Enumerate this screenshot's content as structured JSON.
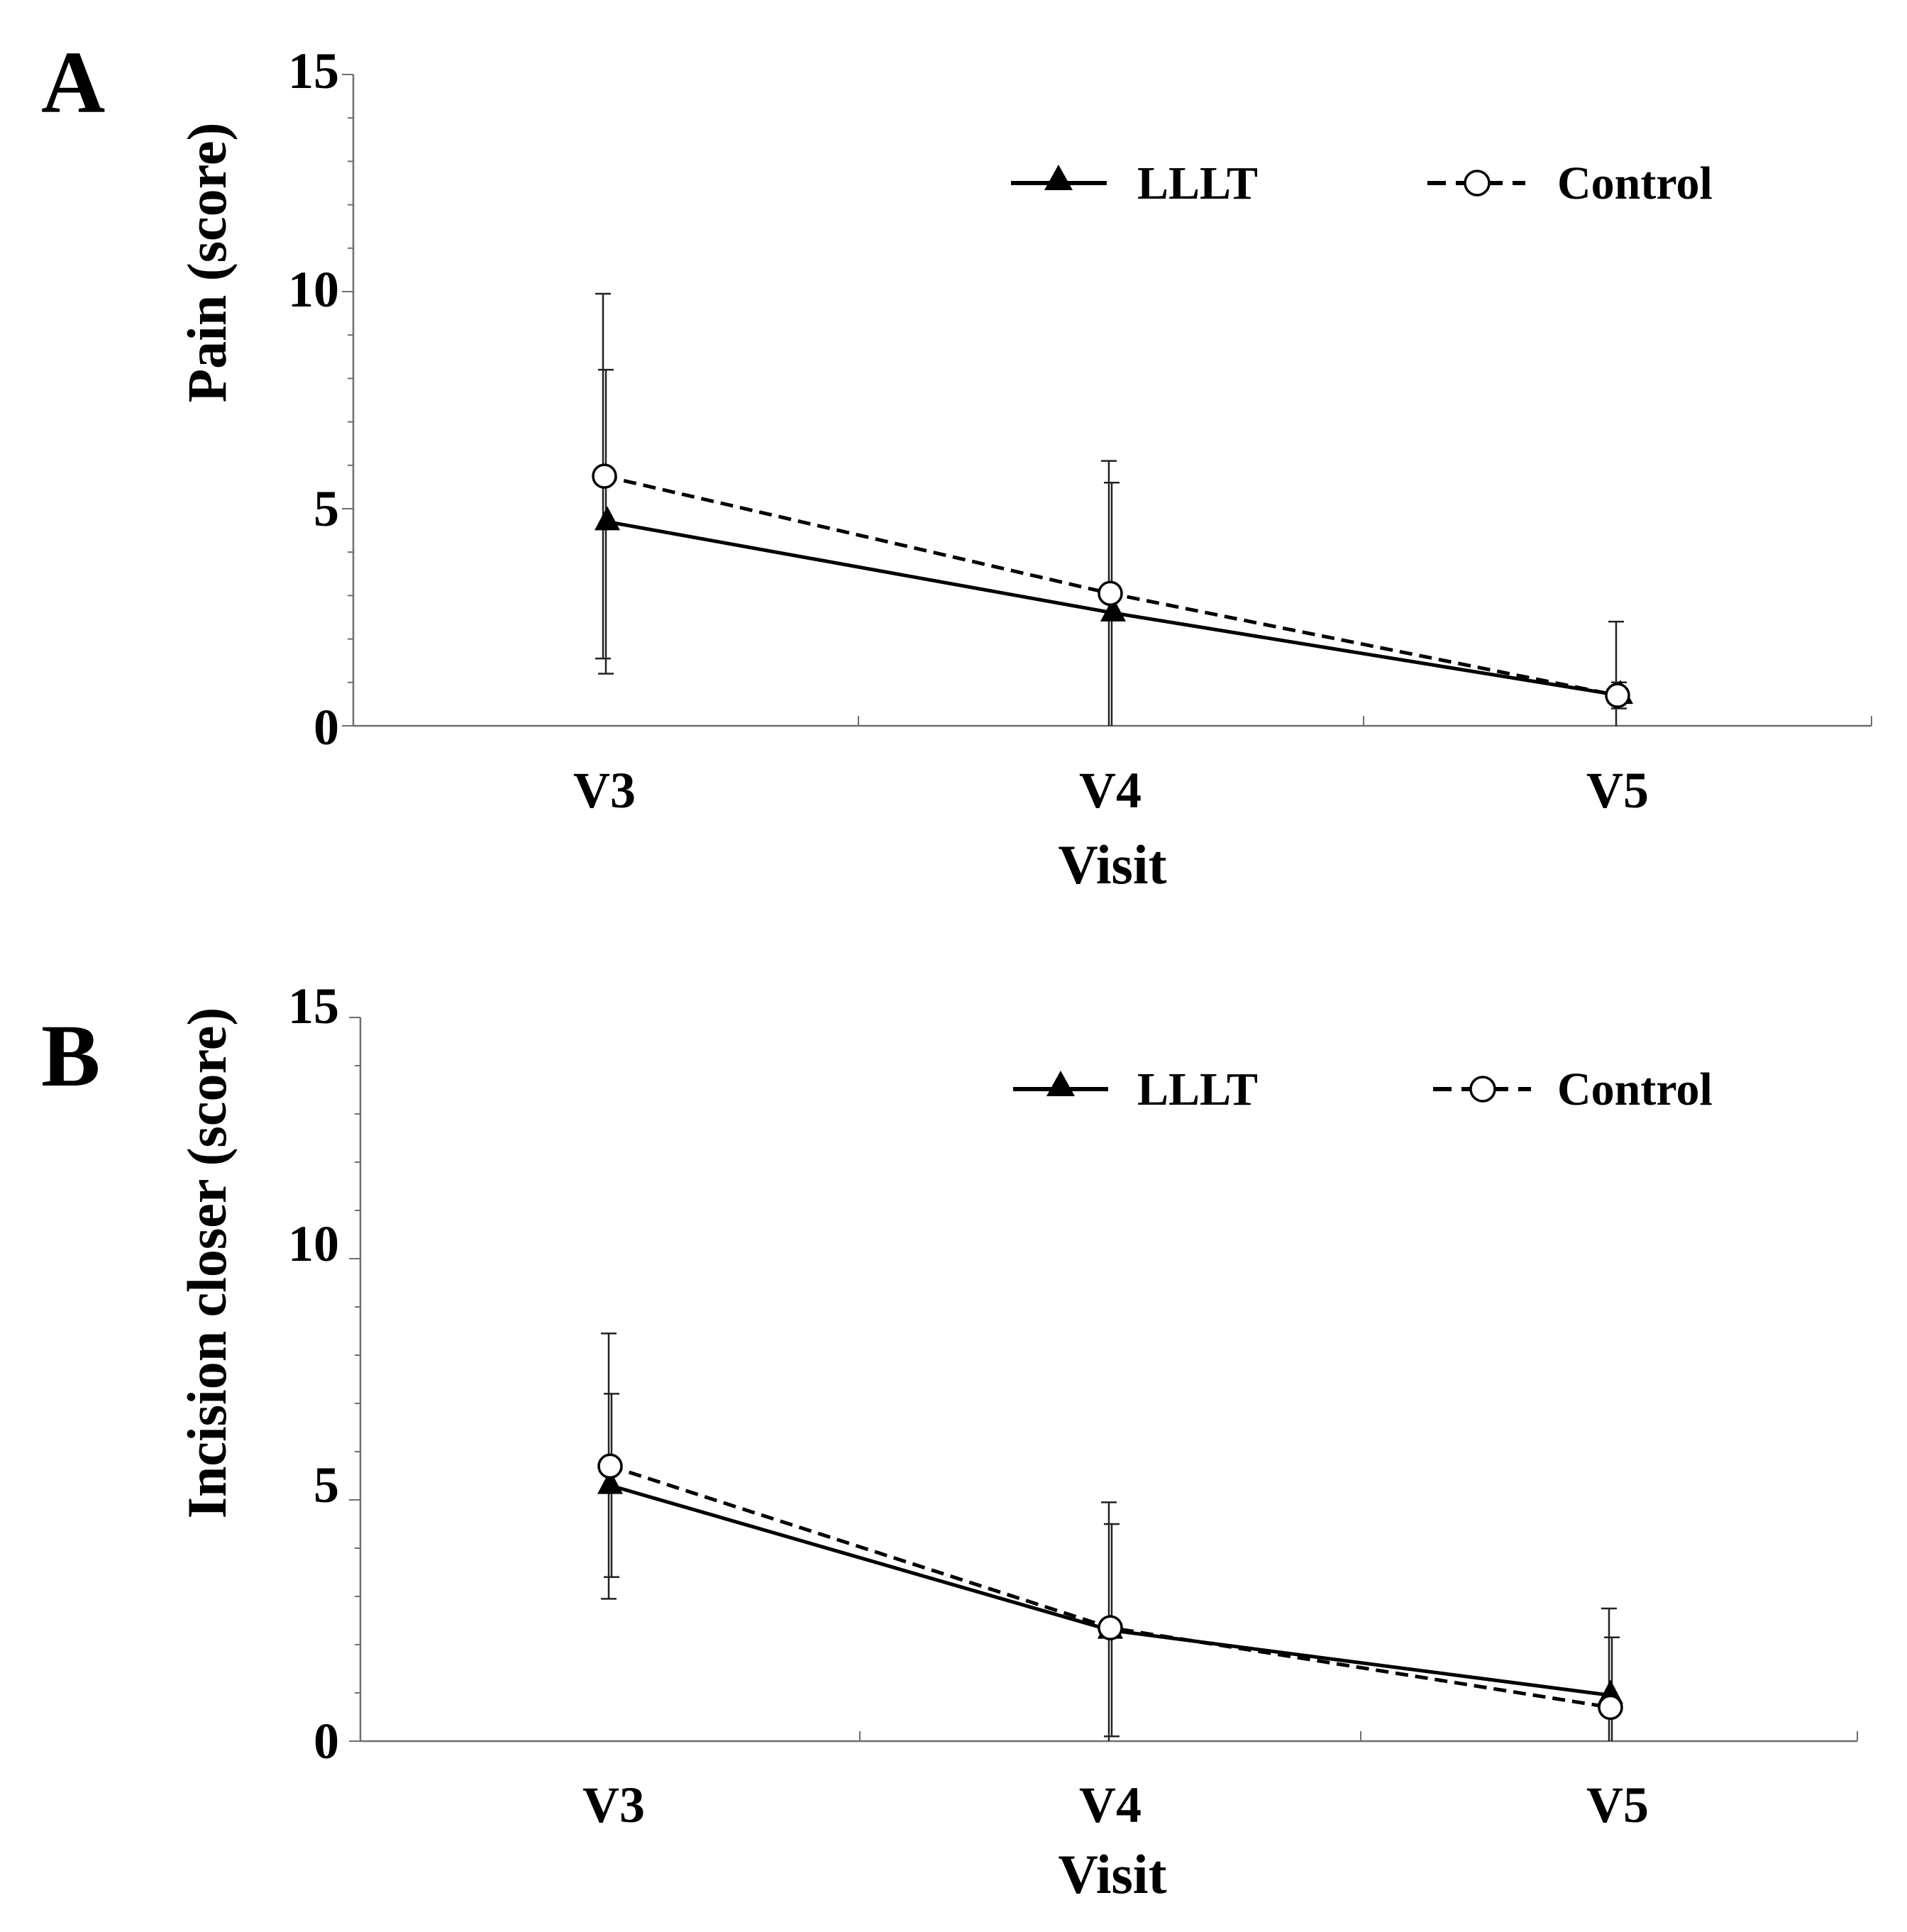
{
  "chart_data": [
    {
      "type": "line",
      "panel": "A",
      "title": "",
      "xlabel": "Visit",
      "ylabel": "Pain (score)",
      "categories": [
        "V3",
        "V4",
        "V5"
      ],
      "ylim": [
        0,
        15
      ],
      "yticks": [
        "0",
        "5",
        "10",
        "15"
      ],
      "series": [
        {
          "name": "LLLT",
          "marker": "triangle",
          "style": "solid",
          "values": [
            4.7,
            2.6,
            0.7
          ],
          "error": [
            3.5,
            3.0,
            0.3
          ]
        },
        {
          "name": "Control",
          "marker": "open-circle",
          "style": "dashed",
          "values": [
            5.75,
            3.05,
            0.7
          ],
          "error": [
            4.2,
            3.05,
            1.7
          ]
        }
      ]
    },
    {
      "type": "line",
      "panel": "B",
      "title": "",
      "xlabel": "Visit",
      "ylabel": "Incision closer (score)",
      "categories": [
        "V3",
        "V4",
        "V5"
      ],
      "ylim": [
        0,
        15
      ],
      "yticks": [
        "0",
        "5",
        "10",
        "15"
      ],
      "series": [
        {
          "name": "LLLT",
          "marker": "triangle",
          "style": "solid",
          "values": [
            5.3,
            2.3,
            0.95
          ],
          "error": [
            1.9,
            2.2,
            1.2
          ]
        },
        {
          "name": "Control",
          "marker": "open-circle",
          "style": "dashed",
          "values": [
            5.7,
            2.35,
            0.7
          ],
          "error": [
            2.75,
            2.6,
            2.05
          ]
        }
      ]
    }
  ]
}
